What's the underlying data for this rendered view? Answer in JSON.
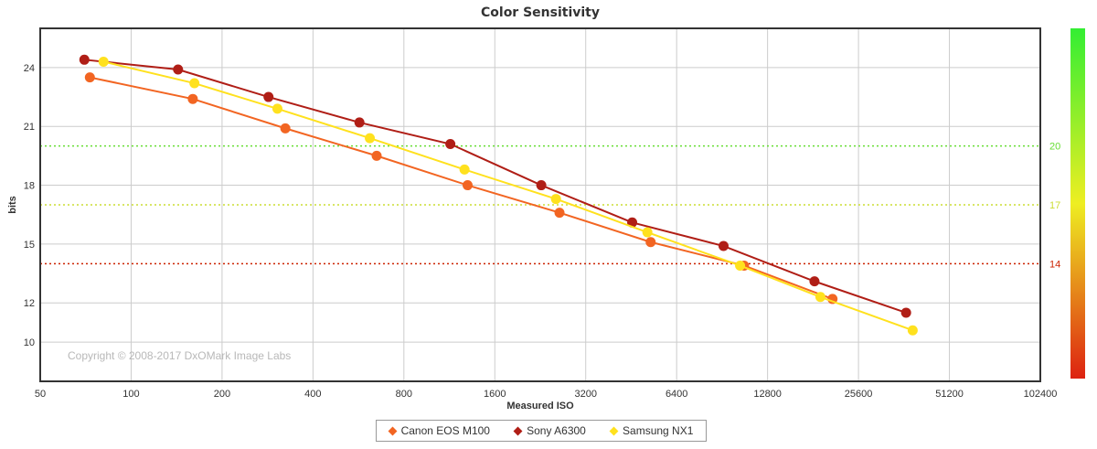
{
  "chart_data": {
    "type": "line",
    "title": "Color Sensitivity",
    "xlabel": "Measured ISO",
    "ylabel": "bits",
    "x_scale": "log2",
    "x_ticks": [
      50,
      100,
      200,
      400,
      800,
      1600,
      3200,
      6400,
      12800,
      25600,
      51200,
      102400
    ],
    "x_tick_labels": [
      "50",
      "100",
      "200",
      "400",
      "800",
      "1600",
      "3200",
      "6400",
      "12800",
      "25600",
      "51200",
      "102400"
    ],
    "xlim": [
      50,
      102400
    ],
    "y_ticks": [
      10,
      12,
      15,
      18,
      21,
      24
    ],
    "y_tick_labels": [
      "10",
      "12",
      "15",
      "18",
      "21",
      "24"
    ],
    "ylim": [
      8,
      26
    ],
    "grid": true,
    "reference_lines": [
      {
        "value": 20,
        "label": "20",
        "color": "#66dd33"
      },
      {
        "value": 17,
        "label": "17",
        "color": "#ccdd33"
      },
      {
        "value": 14,
        "label": "14",
        "color": "#cc2200"
      }
    ],
    "series": [
      {
        "name": "Canon EOS M100",
        "color": "#f26522",
        "x": [
          73,
          160,
          324,
          650,
          1300,
          2620,
          5250,
          10700,
          21000
        ],
        "y": [
          23.5,
          22.4,
          20.9,
          19.5,
          18.0,
          16.6,
          15.1,
          13.9,
          12.2
        ]
      },
      {
        "name": "Sony A6300",
        "color": "#b01e16",
        "x": [
          70,
          143,
          285,
          570,
          1140,
          2280,
          4560,
          9150,
          18300,
          36800
        ],
        "y": [
          24.4,
          23.9,
          22.5,
          21.2,
          20.1,
          18.0,
          16.1,
          14.9,
          13.1,
          11.5
        ]
      },
      {
        "name": "Samsung NX1",
        "color": "#ffe11e",
        "x": [
          81,
          162,
          305,
          617,
          1270,
          2550,
          5120,
          10380,
          19150,
          38700
        ],
        "y": [
          24.3,
          23.2,
          21.9,
          20.4,
          18.8,
          17.3,
          15.6,
          13.9,
          12.3,
          10.6
        ]
      }
    ],
    "legend_position": "bottom"
  },
  "copyright": "Copyright © 2008-2017 DxOMark Image Labs",
  "gradient_bar": {
    "top_color": "#33ee33",
    "mid_color": "#eeee22",
    "bottom_color": "#dd2211"
  }
}
